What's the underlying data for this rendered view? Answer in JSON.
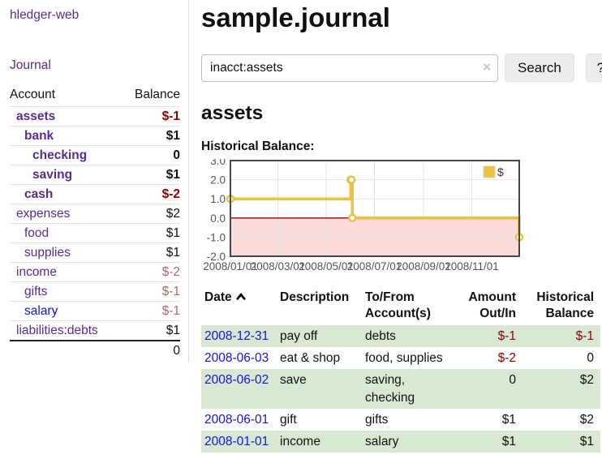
{
  "colors": {
    "accent_purple": "#552e91",
    "link_blue": "#1414e0",
    "neg_strong": "#8b0000",
    "neg_soft": "#b46767",
    "row_green": "#d9e8d3"
  },
  "sidebar": {
    "app_title": "hledger-web",
    "journal_link": "Journal",
    "table": {
      "account_header": "Account",
      "balance_header": "Balance",
      "rows": [
        {
          "name": "assets",
          "balance": "$-1",
          "level": 1,
          "bold": true,
          "balance_style": "neg-strong"
        },
        {
          "name": "bank",
          "balance": "$1",
          "level": 2,
          "bold": true,
          "balance_style": "pos"
        },
        {
          "name": "checking",
          "balance": "0",
          "level": 3,
          "bold": true,
          "balance_style": "pos"
        },
        {
          "name": "saving",
          "balance": "$1",
          "level": 3,
          "bold": true,
          "balance_style": "pos"
        },
        {
          "name": "cash",
          "balance": "$-2",
          "level": 2,
          "bold": true,
          "balance_style": "neg-strong"
        },
        {
          "name": "expenses",
          "balance": "$2",
          "level": 1,
          "bold": false,
          "balance_style": "pos"
        },
        {
          "name": "food",
          "balance": "$1",
          "level": 2,
          "bold": false,
          "balance_style": "pos"
        },
        {
          "name": "supplies",
          "balance": "$1",
          "level": 2,
          "bold": false,
          "balance_style": "pos"
        },
        {
          "name": "income",
          "balance": "$-2",
          "level": 1,
          "bold": false,
          "balance_style": "neg-soft"
        },
        {
          "name": "gifts",
          "balance": "$-1",
          "level": 2,
          "bold": false,
          "balance_style": "neg-soft"
        },
        {
          "name": "salary",
          "balance": "$-1",
          "level": 2,
          "bold": false,
          "balance_style": "neg-soft",
          "link_style": "blue"
        },
        {
          "name": "liabilities:debts",
          "balance": "$1",
          "level": 1,
          "bold": false,
          "balance_style": "pos"
        }
      ],
      "total": "0"
    }
  },
  "main": {
    "title": "sample.journal",
    "search": {
      "value": "inacct:assets",
      "clear_icon": "×",
      "button_label": "Search",
      "help_label": "?"
    },
    "account_heading": "assets",
    "chart_label": "Historical Balance:",
    "register": {
      "headers": {
        "date": "Date",
        "description": "Description",
        "accounts": "To/From Account(s)",
        "amount": "Amount Out/In",
        "balance": "Historical Balance"
      },
      "sort": {
        "column": "date",
        "direction": "ascending"
      },
      "rows": [
        {
          "date": "2008-12-31",
          "description": "pay off",
          "accounts": "debts",
          "amount": "$-1",
          "amount_neg": true,
          "balance": "$-1",
          "balance_neg": true
        },
        {
          "date": "2008-06-03",
          "description": "eat & shop",
          "accounts": "food, supplies",
          "amount": "$-2",
          "amount_neg": true,
          "balance": "0",
          "balance_neg": false
        },
        {
          "date": "2008-06-02",
          "description": "save",
          "accounts": "saving, checking",
          "amount": "0",
          "amount_neg": false,
          "balance": "$2",
          "balance_neg": false
        },
        {
          "date": "2008-06-01",
          "description": "gift",
          "accounts": "gifts",
          "amount": "$1",
          "amount_neg": false,
          "balance": "$2",
          "balance_neg": false
        },
        {
          "date": "2008-01-01",
          "description": "income",
          "accounts": "salary",
          "amount": "$1",
          "amount_neg": false,
          "balance": "$1",
          "balance_neg": false
        }
      ]
    }
  },
  "chart_data": {
    "type": "line",
    "title": "Historical Balance",
    "step": true,
    "series": [
      {
        "name": "$",
        "color": "#edc240",
        "points": [
          [
            "2008-01-01",
            1
          ],
          [
            "2008-06-01",
            2
          ],
          [
            "2008-06-02",
            2
          ],
          [
            "2008-06-03",
            0
          ],
          [
            "2008-12-31",
            -1
          ]
        ]
      }
    ],
    "xlim": [
      "2008-01-01",
      "2008-12-31"
    ],
    "ylim": [
      -2,
      3
    ],
    "yticks": [
      {
        "v": 3,
        "label": "3.0"
      },
      {
        "v": 2,
        "label": "2.0"
      },
      {
        "v": 1,
        "label": "1.0"
      },
      {
        "v": 0,
        "label": "0.0"
      },
      {
        "v": -1,
        "label": "-1.0"
      },
      {
        "v": -2,
        "label": "-2.0"
      }
    ],
    "xticks": [
      {
        "date": "2008-01-01",
        "label": "2008/01/01"
      },
      {
        "date": "2008-03-01",
        "label": "2008/03/01"
      },
      {
        "date": "2008-05-01",
        "label": "2008/05/01"
      },
      {
        "date": "2008-07-01",
        "label": "2008/07/01"
      },
      {
        "date": "2008-09-01",
        "label": "2008/09/01"
      },
      {
        "date": "2008-11-01",
        "label": "2008/11/01"
      }
    ],
    "legend": {
      "position": "top-right",
      "entries": [
        {
          "label": "$",
          "color": "#edc240"
        }
      ]
    },
    "grid_on": true,
    "negative_region_fill": "#fbdada",
    "zero_line_color": "#a40000",
    "grid_color": "#e4e4e4",
    "border_color": "#474747",
    "tick_label_color": "#545454"
  }
}
